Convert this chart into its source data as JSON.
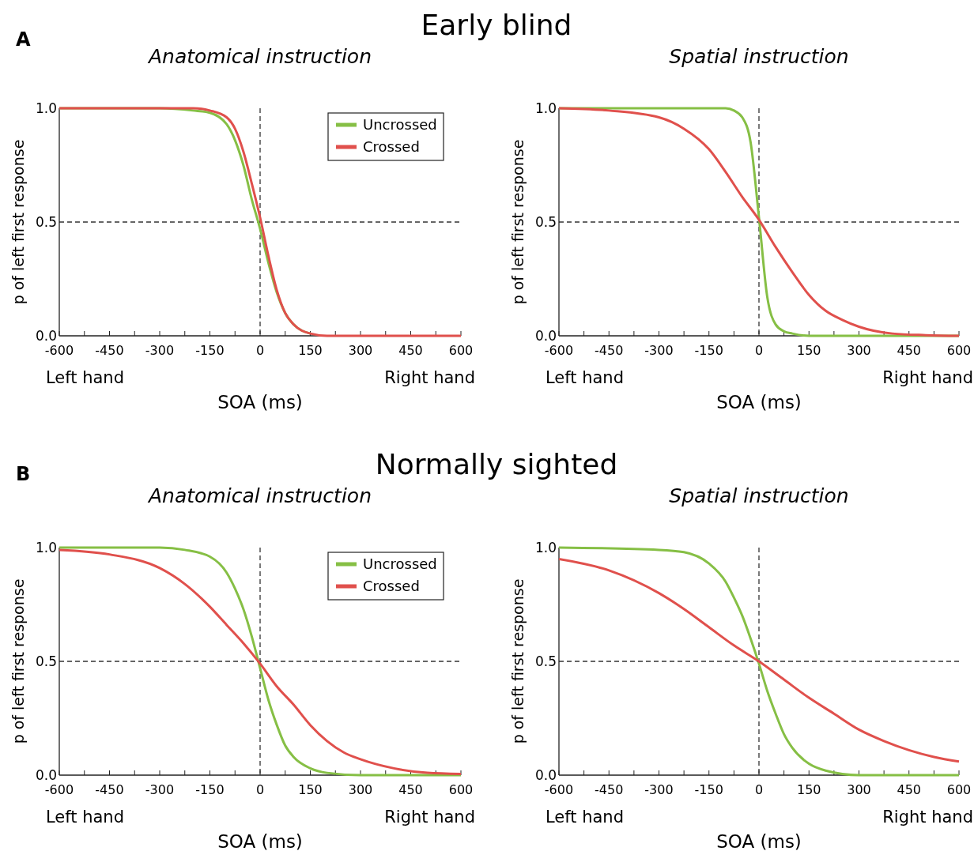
{
  "chart_data": [
    {
      "type": "line",
      "title": "Early blind",
      "subtitle": "Anatomical instruction",
      "xlabel": "SOA (ms)",
      "ylabel": "p of left first response",
      "annotations": [
        "A",
        "Left hand",
        "Right hand"
      ],
      "legend": "top right",
      "xlim": [
        -600,
        600
      ],
      "ylim": [
        0,
        1
      ],
      "xticks": [
        -600,
        {
          "value": -525,
          "label": null
        },
        -450,
        {
          "value": -375,
          "label": null
        },
        -300,
        {
          "value": -225,
          "label": null
        },
        -150,
        {
          "value": -75,
          "label": null
        },
        0,
        {
          "value": 75,
          "label": null
        },
        150,
        {
          "value": 225,
          "label": null
        },
        300,
        {
          "value": 375,
          "label": null
        },
        450,
        {
          "value": 525,
          "label": null
        },
        600
      ],
      "yticks": [
        {
          "value": 0,
          "label": "0.0"
        },
        {
          "value": 0.5,
          "label": "0.5"
        },
        {
          "value": 1,
          "label": "1.0"
        }
      ],
      "ref_lines": [
        {
          "axis": "y",
          "value": 0.5,
          "color": "#333333",
          "line_style": "dashed"
        },
        {
          "axis": "x",
          "value": 0,
          "color": "#333333",
          "line_style": "dashed"
        }
      ],
      "series": [
        {
          "name": "Uncrossed",
          "color": "#86bf45",
          "x": [
            -600,
            -300,
            -200,
            -150,
            -100,
            -75,
            -50,
            -25,
            0,
            25,
            50,
            75,
            100,
            150
          ],
          "values": [
            1,
            1,
            0.99,
            0.98,
            0.93,
            0.86,
            0.75,
            0.6,
            0.47,
            0.32,
            0.19,
            0.1,
            0.05,
            0.01
          ]
        },
        {
          "name": "Crossed",
          "color": "#e0504c",
          "x": [
            -600,
            -300,
            -200,
            -150,
            -100,
            -75,
            -50,
            -25,
            0,
            25,
            50,
            75,
            100,
            150,
            200,
            600
          ],
          "values": [
            1,
            1,
            1,
            0.99,
            0.96,
            0.91,
            0.81,
            0.67,
            0.52,
            0.35,
            0.2,
            0.1,
            0.05,
            0.01,
            0,
            0
          ]
        }
      ]
    },
    {
      "type": "line",
      "subtitle": "Spatial instruction",
      "xlabel": "SOA (ms)",
      "ylabel": "p of left first response",
      "annotations": [
        "Left hand",
        "Right hand"
      ],
      "xlim": [
        -600,
        600
      ],
      "ylim": [
        0,
        1
      ],
      "xticks": [
        -600,
        {
          "value": -525,
          "label": null
        },
        -450,
        {
          "value": -375,
          "label": null
        },
        -300,
        {
          "value": -225,
          "label": null
        },
        -150,
        {
          "value": -75,
          "label": null
        },
        0,
        {
          "value": 75,
          "label": null
        },
        150,
        {
          "value": 225,
          "label": null
        },
        300,
        {
          "value": 375,
          "label": null
        },
        450,
        {
          "value": 525,
          "label": null
        },
        600
      ],
      "yticks": [
        {
          "value": 0,
          "label": "0.0"
        },
        {
          "value": 0.5,
          "label": "0.5"
        },
        {
          "value": 1,
          "label": "1.0"
        }
      ],
      "ref_lines": [
        {
          "axis": "y",
          "value": 0.5,
          "color": "#333333",
          "line_style": "dashed"
        },
        {
          "axis": "x",
          "value": 0,
          "color": "#333333",
          "line_style": "dashed"
        }
      ],
      "series": [
        {
          "color": "#86bf45",
          "x": [
            -600,
            -150,
            -100,
            -75,
            -50,
            -25,
            0,
            25,
            50,
            75,
            100,
            150,
            600
          ],
          "values": [
            1,
            1,
            1,
            0.99,
            0.96,
            0.85,
            0.52,
            0.17,
            0.05,
            0.02,
            0.01,
            0,
            0
          ]
        },
        {
          "color": "#e0504c",
          "x": [
            -600,
            -450,
            -300,
            -225,
            -150,
            -100,
            -50,
            0,
            50,
            100,
            150,
            200,
            250,
            300,
            400,
            500,
            600
          ],
          "values": [
            1,
            0.99,
            0.96,
            0.91,
            0.82,
            0.72,
            0.61,
            0.51,
            0.39,
            0.28,
            0.18,
            0.11,
            0.07,
            0.04,
            0.01,
            0.003,
            0
          ]
        }
      ]
    },
    {
      "type": "line",
      "title": "Normally sighted",
      "subtitle": "Anatomical instruction",
      "xlabel": "SOA (ms)",
      "ylabel": "p of left first response",
      "annotations": [
        "B",
        "Left hand",
        "Right hand"
      ],
      "legend": "top right",
      "xlim": [
        -600,
        600
      ],
      "ylim": [
        0,
        1
      ],
      "xticks": [
        -600,
        {
          "value": -525,
          "label": null
        },
        -450,
        {
          "value": -375,
          "label": null
        },
        -300,
        {
          "value": -225,
          "label": null
        },
        -150,
        {
          "value": -75,
          "label": null
        },
        0,
        {
          "value": 75,
          "label": null
        },
        150,
        {
          "value": 225,
          "label": null
        },
        300,
        {
          "value": 375,
          "label": null
        },
        450,
        {
          "value": 525,
          "label": null
        },
        600
      ],
      "yticks": [
        {
          "value": 0,
          "label": "0.0"
        },
        {
          "value": 0.5,
          "label": "0.5"
        },
        {
          "value": 1,
          "label": "1.0"
        }
      ],
      "ref_lines": [
        {
          "axis": "y",
          "value": 0.5,
          "color": "#333333",
          "line_style": "dashed"
        },
        {
          "axis": "x",
          "value": 0,
          "color": "#333333",
          "line_style": "dashed"
        }
      ],
      "series": [
        {
          "name": "Uncrossed",
          "color": "#86bf45",
          "x": [
            -600,
            -300,
            -225,
            -150,
            -100,
            -75,
            -50,
            -25,
            0,
            25,
            50,
            75,
            100,
            150,
            200,
            300,
            600
          ],
          "values": [
            1,
            1,
            0.99,
            0.96,
            0.89,
            0.82,
            0.73,
            0.61,
            0.47,
            0.33,
            0.22,
            0.13,
            0.08,
            0.03,
            0.01,
            0,
            0
          ]
        },
        {
          "name": "Crossed",
          "color": "#e0504c",
          "x": [
            -600,
            -450,
            -300,
            -225,
            -150,
            -100,
            -50,
            0,
            50,
            100,
            150,
            200,
            250,
            300,
            400,
            500,
            600
          ],
          "values": [
            0.99,
            0.97,
            0.91,
            0.84,
            0.74,
            0.66,
            0.58,
            0.49,
            0.39,
            0.31,
            0.22,
            0.15,
            0.1,
            0.07,
            0.03,
            0.01,
            0.005
          ]
        }
      ]
    },
    {
      "type": "line",
      "subtitle": "Spatial instruction",
      "xlabel": "SOA (ms)",
      "ylabel": "p of left first response",
      "annotations": [
        "Left hand",
        "Right hand"
      ],
      "xlim": [
        -600,
        600
      ],
      "ylim": [
        0,
        1
      ],
      "xticks": [
        -600,
        {
          "value": -525,
          "label": null
        },
        -450,
        {
          "value": -375,
          "label": null
        },
        -300,
        {
          "value": -225,
          "label": null
        },
        -150,
        {
          "value": -75,
          "label": null
        },
        0,
        {
          "value": 75,
          "label": null
        },
        150,
        {
          "value": 225,
          "label": null
        },
        300,
        {
          "value": 375,
          "label": null
        },
        450,
        {
          "value": 525,
          "label": null
        },
        600
      ],
      "yticks": [
        {
          "value": 0,
          "label": "0.0"
        },
        {
          "value": 0.5,
          "label": "0.5"
        },
        {
          "value": 1,
          "label": "1.0"
        }
      ],
      "ref_lines": [
        {
          "axis": "y",
          "value": 0.5,
          "color": "#333333",
          "line_style": "dashed"
        },
        {
          "axis": "x",
          "value": 0,
          "color": "#333333",
          "line_style": "dashed"
        }
      ],
      "series": [
        {
          "color": "#86bf45",
          "x": [
            -600,
            -300,
            -225,
            -150,
            -100,
            -75,
            -50,
            -25,
            0,
            25,
            50,
            75,
            100,
            150,
            200,
            300,
            600
          ],
          "values": [
            1,
            0.99,
            0.98,
            0.93,
            0.85,
            0.78,
            0.7,
            0.6,
            0.49,
            0.37,
            0.27,
            0.18,
            0.12,
            0.05,
            0.02,
            0,
            0
          ]
        },
        {
          "color": "#e0504c",
          "x": [
            -600,
            -450,
            -300,
            -225,
            -150,
            -75,
            0,
            75,
            150,
            225,
            300,
            375,
            450,
            525,
            600
          ],
          "values": [
            0.95,
            0.9,
            0.8,
            0.73,
            0.65,
            0.57,
            0.5,
            0.42,
            0.34,
            0.27,
            0.2,
            0.15,
            0.11,
            0.08,
            0.06
          ]
        }
      ]
    }
  ]
}
